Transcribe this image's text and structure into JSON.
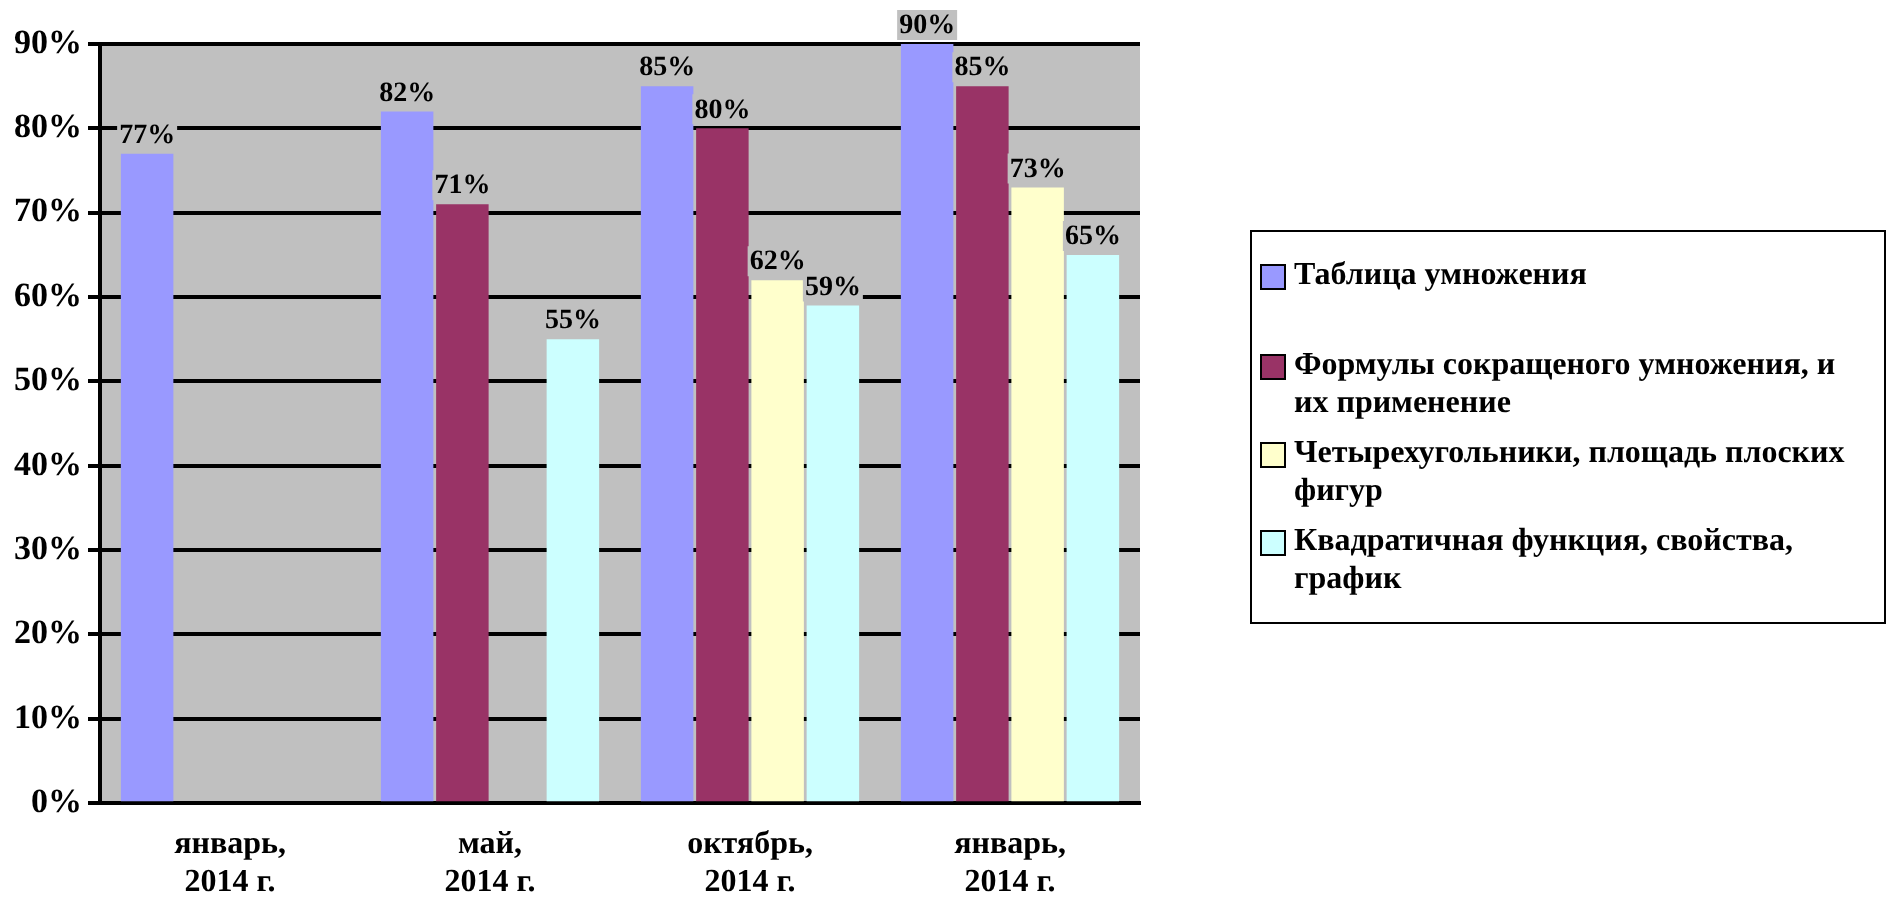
{
  "chart_data": {
    "type": "bar",
    "categories": [
      "январь,\n2014 г.",
      "май,\n2014 г.",
      "октябрь,\n2014 г.",
      "январь,\n2014 г."
    ],
    "series": [
      {
        "name": "Таблица умножения",
        "color": "#9999ff",
        "values": [
          77,
          82,
          85,
          90
        ],
        "value_labels": [
          "77%",
          "82%",
          "85%",
          "90%"
        ]
      },
      {
        "name": "Формулы сокращеного умножения, и их применение",
        "color": "#993366",
        "values": [
          null,
          71,
          80,
          85
        ],
        "value_labels": [
          null,
          "71%",
          "80%",
          "85%"
        ]
      },
      {
        "name": "Четырехугольники, площадь плоских фигур",
        "color": "#ffffcc",
        "values": [
          null,
          null,
          62,
          73
        ],
        "value_labels": [
          null,
          null,
          "62%",
          "73%"
        ]
      },
      {
        "name": "Квадратичная функция, свойства, график",
        "color": "#ccffff",
        "values": [
          null,
          55,
          59,
          65
        ],
        "value_labels": [
          null,
          "55%",
          "59%",
          "65%"
        ]
      }
    ],
    "ylim": [
      0,
      90
    ],
    "yticks": [
      {
        "value": 0,
        "label": "0%"
      },
      {
        "value": 10,
        "label": "10%"
      },
      {
        "value": 20,
        "label": "20%"
      },
      {
        "value": 30,
        "label": "30%"
      },
      {
        "value": 40,
        "label": "40%"
      },
      {
        "value": 50,
        "label": "50%"
      },
      {
        "value": 60,
        "label": "60%"
      },
      {
        "value": 70,
        "label": "70%"
      },
      {
        "value": 80,
        "label": "80%"
      },
      {
        "value": 90,
        "label": "90%"
      }
    ],
    "grid": "y",
    "legend": "right"
  }
}
